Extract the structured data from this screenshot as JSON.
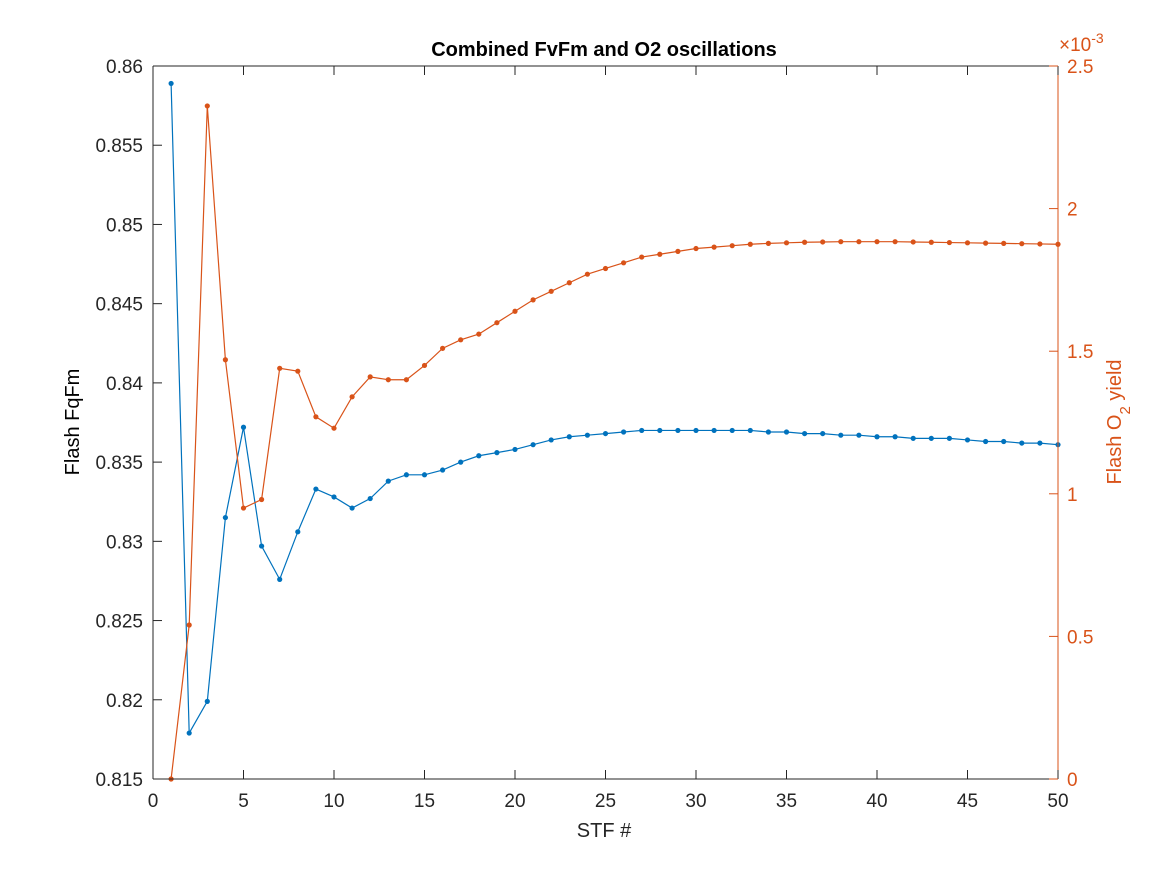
{
  "chart_data": {
    "type": "line",
    "title": "Combined FvFm and O2 oscillations",
    "xlabel": "STF #",
    "ylabel_left": "Flash FqFm",
    "ylabel_right_parts": [
      "Flash O",
      "2",
      " yield"
    ],
    "right_exponent_base": "×10",
    "right_exponent_power": "-3",
    "xlim": [
      0,
      50
    ],
    "ylim_left": [
      0.815,
      0.86
    ],
    "ylim_right": [
      0,
      2.5
    ],
    "right_scale_note": "right axis values in units of 1e-3",
    "xticks": [
      0,
      5,
      10,
      15,
      20,
      25,
      30,
      35,
      40,
      45,
      50
    ],
    "yticks_left": [
      0.815,
      0.82,
      0.825,
      0.83,
      0.835,
      0.84,
      0.845,
      0.85,
      0.855,
      0.86
    ],
    "yticks_left_labels": [
      "0.815",
      "0.82",
      "0.825",
      "0.83",
      "0.835",
      "0.84",
      "0.845",
      "0.85",
      "0.855",
      "0.86"
    ],
    "yticks_right": [
      0,
      0.5,
      1,
      1.5,
      2,
      2.5
    ],
    "yticks_right_labels": [
      "0",
      "0.5",
      "1",
      "1.5",
      "2",
      "2.5"
    ],
    "grid": false,
    "x": [
      1,
      2,
      3,
      4,
      5,
      6,
      7,
      8,
      9,
      10,
      11,
      12,
      13,
      14,
      15,
      16,
      17,
      18,
      19,
      20,
      21,
      22,
      23,
      24,
      25,
      26,
      27,
      28,
      29,
      30,
      31,
      32,
      33,
      34,
      35,
      36,
      37,
      38,
      39,
      40,
      41,
      42,
      43,
      44,
      45,
      46,
      47,
      48,
      49,
      50
    ],
    "series": [
      {
        "axis": "left",
        "color": "#0072BD",
        "values": [
          0.8589,
          0.8179,
          0.8199,
          0.8315,
          0.8372,
          0.8297,
          0.8276,
          0.8306,
          0.8333,
          0.8328,
          0.8321,
          0.8327,
          0.8338,
          0.8342,
          0.8342,
          0.8345,
          0.835,
          0.8354,
          0.8356,
          0.8358,
          0.8361,
          0.8364,
          0.8366,
          0.8367,
          0.8368,
          0.8369,
          0.837,
          0.837,
          0.837,
          0.837,
          0.837,
          0.837,
          0.837,
          0.8369,
          0.8369,
          0.8368,
          0.8368,
          0.8367,
          0.8367,
          0.8366,
          0.8366,
          0.8365,
          0.8365,
          0.8365,
          0.8364,
          0.8363,
          0.8363,
          0.8362,
          0.8362,
          0.8361
        ]
      },
      {
        "axis": "right",
        "color": "#D95319",
        "values": [
          0.0,
          0.54,
          2.36,
          1.47,
          0.95,
          0.98,
          1.44,
          1.43,
          1.27,
          1.23,
          1.34,
          1.41,
          1.4,
          1.4,
          1.45,
          1.51,
          1.54,
          1.56,
          1.6,
          1.64,
          1.68,
          1.71,
          1.74,
          1.77,
          1.79,
          1.81,
          1.83,
          1.84,
          1.85,
          1.86,
          1.865,
          1.87,
          1.875,
          1.878,
          1.88,
          1.882,
          1.883,
          1.884,
          1.884,
          1.884,
          1.884,
          1.883,
          1.882,
          1.881,
          1.88,
          1.879,
          1.878,
          1.877,
          1.876,
          1.875
        ]
      }
    ]
  }
}
